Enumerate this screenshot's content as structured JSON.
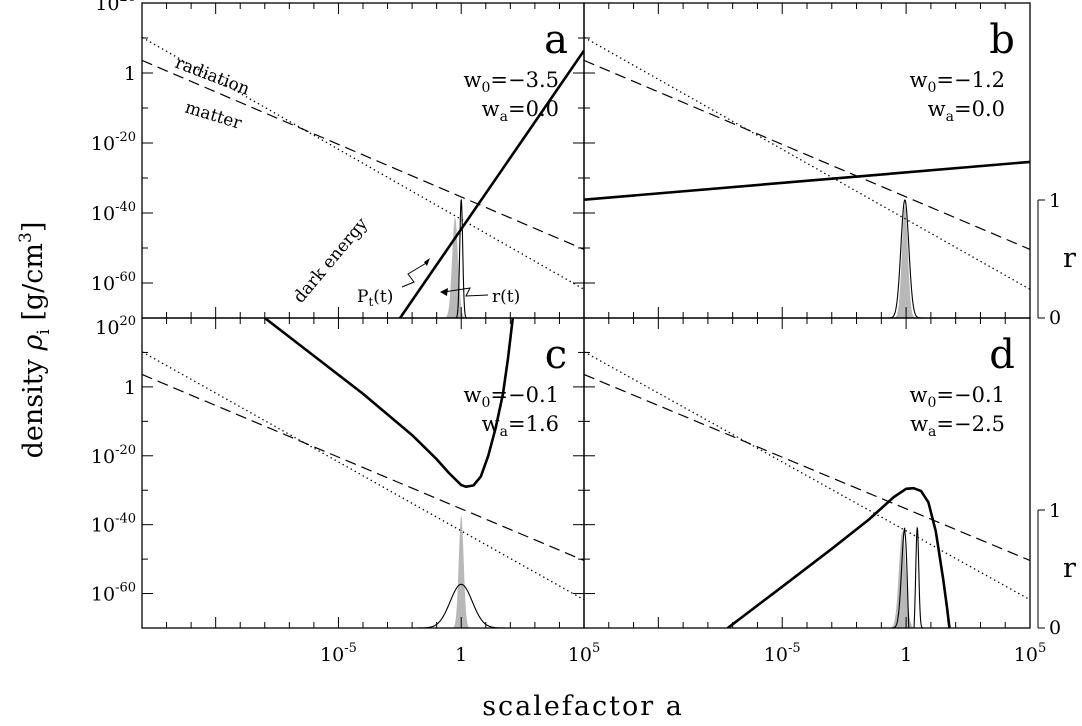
{
  "figure": {
    "ylabel_text": "density ",
    "ylabel_sym": "ρ",
    "ylabel_sub": "i",
    "ylabel_unit": " [g/cm",
    "ylabel_exp": "3",
    "ylabel_close": "]",
    "xlabel": "scalefactor a",
    "right_axis_label": "r",
    "right_ticks": [
      "0",
      "1"
    ]
  },
  "axes": {
    "y_scale": "log",
    "x_scale": "log",
    "ylim_log10": [
      -70,
      20
    ],
    "xlim_log10": [
      -13,
      5
    ],
    "y_ticks": [
      {
        "v": 20,
        "base": "10",
        "exp": "20"
      },
      {
        "v": 0,
        "base": "1",
        "exp": ""
      },
      {
        "v": -20,
        "base": "10",
        "exp": "-20"
      },
      {
        "v": -40,
        "base": "10",
        "exp": "-40"
      },
      {
        "v": -60,
        "base": "10",
        "exp": "-60"
      }
    ],
    "x_ticks": [
      {
        "v": -5,
        "base": "10",
        "exp": "-5"
      },
      {
        "v": 0,
        "base": "1",
        "exp": ""
      },
      {
        "v": 5,
        "base": "10",
        "exp": "5"
      }
    ]
  },
  "annotations": {
    "radiation": "radiation",
    "matter": "matter",
    "dark_energy": "dark energy",
    "pt": "P",
    "pt_sub": "t",
    "pt_arg": "(t)",
    "rt": "r(t)"
  },
  "chart_data": [
    {
      "panel": "a",
      "type": "line",
      "params": {
        "w0_label": "w",
        "w0_sub": "0",
        "w0": "=−3.5",
        "wa_label": "w",
        "wa_sub": "a",
        "wa": "=0.0"
      },
      "series": [
        {
          "name": "radiation",
          "style": "dotted",
          "x": [
            -13,
            5
          ],
          "y": [
            10.2,
            -61.8
          ]
        },
        {
          "name": "matter",
          "style": "dashed",
          "x": [
            -13,
            5
          ],
          "y": [
            3.6,
            -50.4
          ]
        },
        {
          "name": "dark energy",
          "style": "thick",
          "x": [
            -13,
            5
          ],
          "y": [
            -177.2,
            6.4
          ]
        }
      ],
      "pdf": {
        "shade": "P_t(t)",
        "center": -0.25,
        "width": 0.12,
        "peak": 0.85
      },
      "r_curve": {
        "center": 0.0,
        "width": 0.06,
        "peak": 1.0
      },
      "right_axis": false
    },
    {
      "panel": "b",
      "type": "line",
      "params": {
        "w0_label": "w",
        "w0_sub": "0",
        "w0": "=−1.2",
        "wa_label": "w",
        "wa_sub": "a",
        "wa": "=0.0"
      },
      "series": [
        {
          "name": "radiation",
          "style": "dotted",
          "x": [
            -13,
            5
          ],
          "y": [
            10.2,
            -61.8
          ]
        },
        {
          "name": "matter",
          "style": "dashed",
          "x": [
            -13,
            5
          ],
          "y": [
            3.6,
            -50.4
          ]
        },
        {
          "name": "dark energy",
          "style": "thick",
          "x": [
            -13,
            5
          ],
          "y": [
            -36.2,
            -25.4
          ]
        }
      ],
      "pdf": {
        "shade": "P_t(t)",
        "center": -0.05,
        "width": 0.12,
        "peak": 0.95
      },
      "r_curve": {
        "center": -0.05,
        "width": 0.16,
        "peak": 1.0
      },
      "right_axis": true
    },
    {
      "panel": "c",
      "type": "line",
      "params": {
        "w0_label": "w",
        "w0_sub": "0",
        "w0": "=−0.1",
        "wa_label": "w",
        "wa_sub": "a",
        "wa": "=1.6"
      },
      "series": [
        {
          "name": "radiation",
          "style": "dotted",
          "x": [
            -13,
            5
          ],
          "y": [
            10.2,
            -61.8
          ]
        },
        {
          "name": "matter",
          "style": "dashed",
          "x": [
            -13,
            5
          ],
          "y": [
            3.6,
            -50.4
          ]
        },
        {
          "name": "dark energy",
          "style": "thick",
          "x": [
            -8.0,
            -6.0,
            -4.0,
            -2.0,
            -1.0,
            -0.5,
            0.0,
            0.2,
            0.5,
            0.8,
            1.1,
            1.4,
            1.7,
            1.9,
            2.0,
            2.1
          ],
          "y": [
            20.0,
            9.0,
            -2.0,
            -14.0,
            -21.0,
            -25.0,
            -28.5,
            -29.0,
            -28.6,
            -26.0,
            -20.0,
            -12.0,
            -2.0,
            8.0,
            14.0,
            20.0
          ]
        }
      ],
      "pdf": {
        "shade": "P_t(t)",
        "center": 0.0,
        "width": 0.1,
        "peak": 0.95
      },
      "r_curve": {
        "center": 0.0,
        "width": 0.45,
        "peak": 0.37
      },
      "right_axis": false
    },
    {
      "panel": "d",
      "type": "line",
      "params": {
        "w0_label": "w",
        "w0_sub": "0",
        "w0": "=−0.1",
        "wa_label": "w",
        "wa_sub": "a",
        "wa": "=−2.5"
      },
      "series": [
        {
          "name": "radiation",
          "style": "dotted",
          "x": [
            -13,
            5
          ],
          "y": [
            10.2,
            -61.8
          ]
        },
        {
          "name": "matter",
          "style": "dashed",
          "x": [
            -13,
            5
          ],
          "y": [
            3.6,
            -50.4
          ]
        },
        {
          "name": "dark energy",
          "style": "thick",
          "x": [
            -7.2,
            -5.0,
            -3.0,
            -1.5,
            -0.5,
            0.0,
            0.3,
            0.6,
            0.9,
            1.2,
            1.5,
            1.65,
            1.75
          ],
          "y": [
            -70.0,
            -58.0,
            -47.0,
            -38.5,
            -32.0,
            -29.6,
            -29.4,
            -30.2,
            -33.5,
            -42.0,
            -56.0,
            -64.0,
            -70.0
          ]
        }
      ],
      "pdf": {
        "shade": "P_t(t)",
        "center": -0.15,
        "width": 0.14,
        "peak": 0.82
      },
      "r_curve": {
        "center": 0.0,
        "width": 0.5,
        "peak": 0.85,
        "dip_center": 0.0,
        "dip": 0.45,
        "spike_center": 0.45,
        "spike_width": 0.06
      },
      "right_axis": true
    }
  ]
}
